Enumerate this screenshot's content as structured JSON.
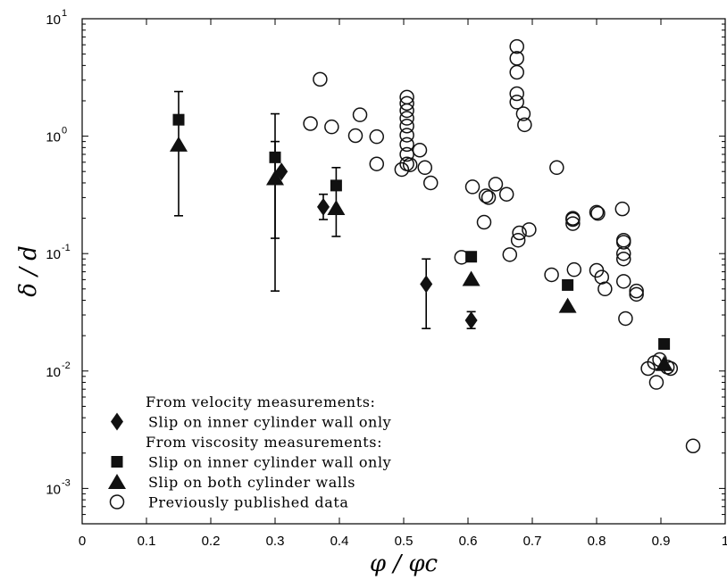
{
  "chart_data": {
    "type": "scatter",
    "xlabel": "φ / φc",
    "ylabel": "δ / d",
    "xlim": [
      0,
      1
    ],
    "ylim": [
      0.0005,
      10
    ],
    "yscale": "log",
    "grid": false,
    "legend_placement": "bottom-left",
    "x_ticks": [
      "0",
      "0.1",
      "0.2",
      "0.3",
      "0.4",
      "0.5",
      "0.6",
      "0.7",
      "0.8",
      "0.9",
      "1"
    ],
    "y_ticks": [
      {
        "base": "10",
        "exp": "1",
        "value": 10
      },
      {
        "base": "10",
        "exp": "0",
        "value": 1
      },
      {
        "base": "10",
        "exp": "-1",
        "value": 0.1
      },
      {
        "base": "10",
        "exp": "-2",
        "value": 0.01
      },
      {
        "base": "10",
        "exp": "-3",
        "value": 0.001
      }
    ],
    "legend": [
      {
        "kind": "header",
        "text": "From velocity measurements:"
      },
      {
        "kind": "entry",
        "marker": "diamond",
        "text": "Slip on inner cylinder wall only"
      },
      {
        "kind": "header",
        "text": "From viscosity measurements:"
      },
      {
        "kind": "entry",
        "marker": "square",
        "text": "Slip on inner cylinder wall only"
      },
      {
        "kind": "entry",
        "marker": "triangle",
        "text": "Slip on both cylinder walls"
      },
      {
        "kind": "entry",
        "marker": "circle",
        "text": "Previously published data"
      }
    ],
    "series": [
      {
        "marker": "diamond",
        "points": [
          [
            0.31,
            0.5
          ],
          [
            0.375,
            0.25
          ],
          [
            0.535,
            0.055
          ],
          [
            0.605,
            0.027
          ]
        ]
      },
      {
        "marker": "square",
        "points": [
          [
            0.15,
            1.38
          ],
          [
            0.3,
            0.66
          ],
          [
            0.395,
            0.38
          ],
          [
            0.605,
            0.094
          ],
          [
            0.755,
            0.054
          ],
          [
            0.905,
            0.017
          ]
        ]
      },
      {
        "marker": "triangle",
        "points": [
          [
            0.15,
            0.85
          ],
          [
            0.3,
            0.44
          ],
          [
            0.395,
            0.245
          ],
          [
            0.605,
            0.061
          ],
          [
            0.755,
            0.036
          ],
          [
            0.905,
            0.0115
          ]
        ]
      },
      {
        "marker": "circle",
        "points": [
          [
            0.355,
            1.28
          ],
          [
            0.37,
            3.05
          ],
          [
            0.388,
            1.2
          ],
          [
            0.425,
            1.01
          ],
          [
            0.432,
            1.52
          ],
          [
            0.458,
            0.99
          ],
          [
            0.458,
            0.58
          ],
          [
            0.497,
            0.52
          ],
          [
            0.505,
            2.15
          ],
          [
            0.505,
            1.9
          ],
          [
            0.505,
            1.65
          ],
          [
            0.505,
            1.42
          ],
          [
            0.505,
            1.22
          ],
          [
            0.505,
            1.02
          ],
          [
            0.505,
            0.85
          ],
          [
            0.505,
            0.7
          ],
          [
            0.505,
            0.58
          ],
          [
            0.51,
            0.57
          ],
          [
            0.525,
            0.76
          ],
          [
            0.533,
            0.54
          ],
          [
            0.542,
            0.4
          ],
          [
            0.59,
            0.093
          ],
          [
            0.607,
            0.37
          ],
          [
            0.625,
            0.185
          ],
          [
            0.628,
            0.31
          ],
          [
            0.632,
            0.3
          ],
          [
            0.643,
            0.39
          ],
          [
            0.66,
            0.32
          ],
          [
            0.665,
            0.098
          ],
          [
            0.676,
            5.8
          ],
          [
            0.676,
            4.6
          ],
          [
            0.676,
            3.5
          ],
          [
            0.676,
            2.3
          ],
          [
            0.676,
            1.95
          ],
          [
            0.678,
            0.13
          ],
          [
            0.68,
            0.15
          ],
          [
            0.686,
            1.55
          ],
          [
            0.688,
            1.25
          ],
          [
            0.695,
            0.16
          ],
          [
            0.73,
            0.066
          ],
          [
            0.738,
            0.54
          ],
          [
            0.763,
            0.2
          ],
          [
            0.763,
            0.195
          ],
          [
            0.763,
            0.18
          ],
          [
            0.765,
            0.073
          ],
          [
            0.8,
            0.072
          ],
          [
            0.8,
            0.225
          ],
          [
            0.802,
            0.22
          ],
          [
            0.808,
            0.063
          ],
          [
            0.813,
            0.05
          ],
          [
            0.84,
            0.24
          ],
          [
            0.842,
            0.13
          ],
          [
            0.842,
            0.125
          ],
          [
            0.842,
            0.1
          ],
          [
            0.842,
            0.09
          ],
          [
            0.842,
            0.058
          ],
          [
            0.845,
            0.028
          ],
          [
            0.862,
            0.048
          ],
          [
            0.862,
            0.045
          ],
          [
            0.88,
            0.0105
          ],
          [
            0.89,
            0.0118
          ],
          [
            0.893,
            0.008
          ],
          [
            0.898,
            0.0125
          ],
          [
            0.91,
            0.0108
          ],
          [
            0.915,
            0.0105
          ],
          [
            0.95,
            0.0023
          ]
        ]
      }
    ],
    "error_bars": [
      {
        "x": 0.15,
        "low": 0.21,
        "high": 2.4
      },
      {
        "x": 0.3,
        "low": 0.048,
        "high": 1.55
      },
      {
        "x": 0.3,
        "low": 0.135,
        "high": 0.9
      },
      {
        "x": 0.375,
        "low": 0.195,
        "high": 0.32
      },
      {
        "x": 0.395,
        "low": 0.14,
        "high": 0.54
      },
      {
        "x": 0.535,
        "low": 0.023,
        "high": 0.09
      },
      {
        "x": 0.605,
        "low": 0.023,
        "high": 0.032
      }
    ]
  }
}
